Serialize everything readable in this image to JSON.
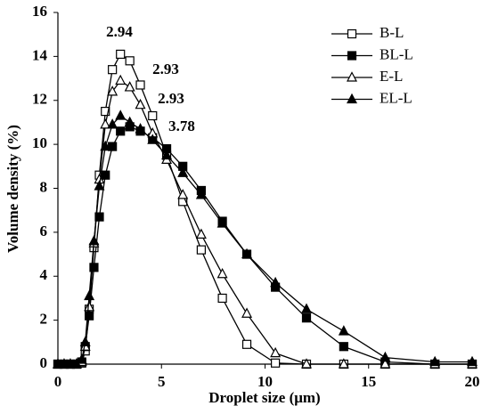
{
  "chart_data": {
    "type": "line",
    "xlabel": "Droplet size (μm)",
    "ylabel": "Volume density (%)",
    "annotations": [
      "2.94",
      "2.93",
      "2.93",
      "3.78"
    ],
    "x": [
      0,
      0.3,
      0.6,
      0.9,
      1.15,
      1.32,
      1.51,
      1.74,
      2.0,
      2.29,
      2.63,
      3.02,
      3.47,
      3.98,
      4.57,
      5.25,
      6.03,
      6.92,
      7.94,
      9.12,
      10.5,
      12.0,
      13.8,
      15.8,
      18.2,
      20.0
    ],
    "series": [
      {
        "name": "B-L",
        "color": "#000000",
        "marker": "square",
        "filled": false,
        "values": [
          0,
          0,
          0,
          0,
          0.05,
          0.6,
          2.5,
          5.3,
          8.6,
          11.5,
          13.4,
          14.1,
          13.8,
          12.7,
          11.3,
          9.5,
          7.4,
          5.2,
          3.0,
          0.9,
          0.05,
          0,
          0,
          0,
          0,
          0
        ]
      },
      {
        "name": "BL-L",
        "color": "#000000",
        "marker": "square",
        "filled": true,
        "values": [
          0,
          0,
          0,
          0,
          0.1,
          0.8,
          2.2,
          4.4,
          6.7,
          8.6,
          9.9,
          10.6,
          10.8,
          10.6,
          10.3,
          9.8,
          9.0,
          7.9,
          6.5,
          5.0,
          3.5,
          2.1,
          0.8,
          0.1,
          0,
          0
        ]
      },
      {
        "name": "E-L",
        "color": "#000000",
        "marker": "triangle",
        "filled": false,
        "values": [
          0,
          0,
          0,
          0,
          0.1,
          0.8,
          2.6,
          5.5,
          8.4,
          10.9,
          12.4,
          12.9,
          12.6,
          11.8,
          10.5,
          9.3,
          7.7,
          5.9,
          4.1,
          2.3,
          0.5,
          0,
          0,
          0,
          0,
          0
        ]
      },
      {
        "name": "EL-L",
        "color": "#000000",
        "marker": "triangle",
        "filled": true,
        "values": [
          0,
          0,
          0,
          0,
          0.2,
          1.0,
          3.1,
          5.6,
          8.1,
          9.9,
          10.9,
          11.3,
          11.0,
          10.7,
          10.2,
          9.5,
          8.7,
          7.7,
          6.4,
          5.0,
          3.7,
          2.5,
          1.5,
          0.3,
          0.1,
          0.1
        ]
      }
    ],
    "xlim": [
      0,
      20
    ],
    "xticks": [
      0,
      5,
      10,
      15,
      20
    ],
    "ylim": [
      0,
      16
    ],
    "yticks": [
      0,
      2,
      4,
      6,
      8,
      10,
      12,
      14,
      16
    ],
    "grid": false,
    "legend": "upper right"
  }
}
